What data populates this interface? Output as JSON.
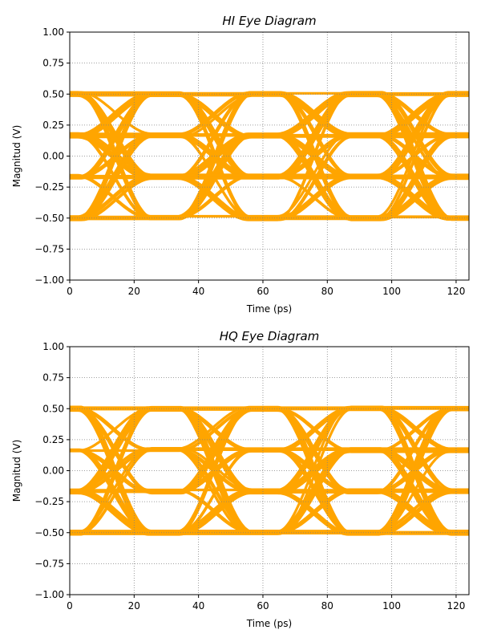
{
  "chart_data": [
    {
      "type": "line",
      "title": "HI Eye Diagram",
      "xlabel": "Time (ps)",
      "ylabel": "Magnitud (V)",
      "xlim": [
        0,
        124
      ],
      "ylim": [
        -1.0,
        1.0
      ],
      "xticks": [
        0,
        20,
        40,
        60,
        80,
        100,
        120
      ],
      "xtick_labels": [
        "0",
        "20",
        "40",
        "60",
        "80",
        "100",
        "120"
      ],
      "yticks": [
        -1.0,
        -0.75,
        -0.5,
        -0.25,
        0.0,
        0.25,
        0.5,
        0.75,
        1.0
      ],
      "ytick_labels": [
        "−1.00",
        "−0.75",
        "−0.50",
        "−0.25",
        "0.00",
        "0.25",
        "0.50",
        "0.75",
        "1.00"
      ],
      "grid": true,
      "color": "#ffa500",
      "levels": [
        -0.5,
        -0.1667,
        0.1667,
        0.5
      ],
      "symbol_period_ps": 31,
      "transition_centers_ps": [
        14,
        45,
        76,
        107
      ],
      "transition_width_ps": 22
    },
    {
      "type": "line",
      "title": "HQ Eye Diagram",
      "xlabel": "Time (ps)",
      "ylabel": "Magnitud (V)",
      "xlim": [
        0,
        124
      ],
      "ylim": [
        -1.0,
        1.0
      ],
      "xticks": [
        0,
        20,
        40,
        60,
        80,
        100,
        120
      ],
      "xtick_labels": [
        "0",
        "20",
        "40",
        "60",
        "80",
        "100",
        "120"
      ],
      "yticks": [
        -1.0,
        -0.75,
        -0.5,
        -0.25,
        0.0,
        0.25,
        0.5,
        0.75,
        1.0
      ],
      "ytick_labels": [
        "−1.00",
        "−0.75",
        "−0.50",
        "−0.25",
        "0.00",
        "0.25",
        "0.50",
        "0.75",
        "1.00"
      ],
      "grid": true,
      "color": "#ffa500",
      "levels": [
        -0.5,
        -0.1667,
        0.1667,
        0.5
      ],
      "symbol_period_ps": 31,
      "transition_centers_ps": [
        14,
        45,
        76,
        107
      ],
      "transition_width_ps": 22
    }
  ]
}
